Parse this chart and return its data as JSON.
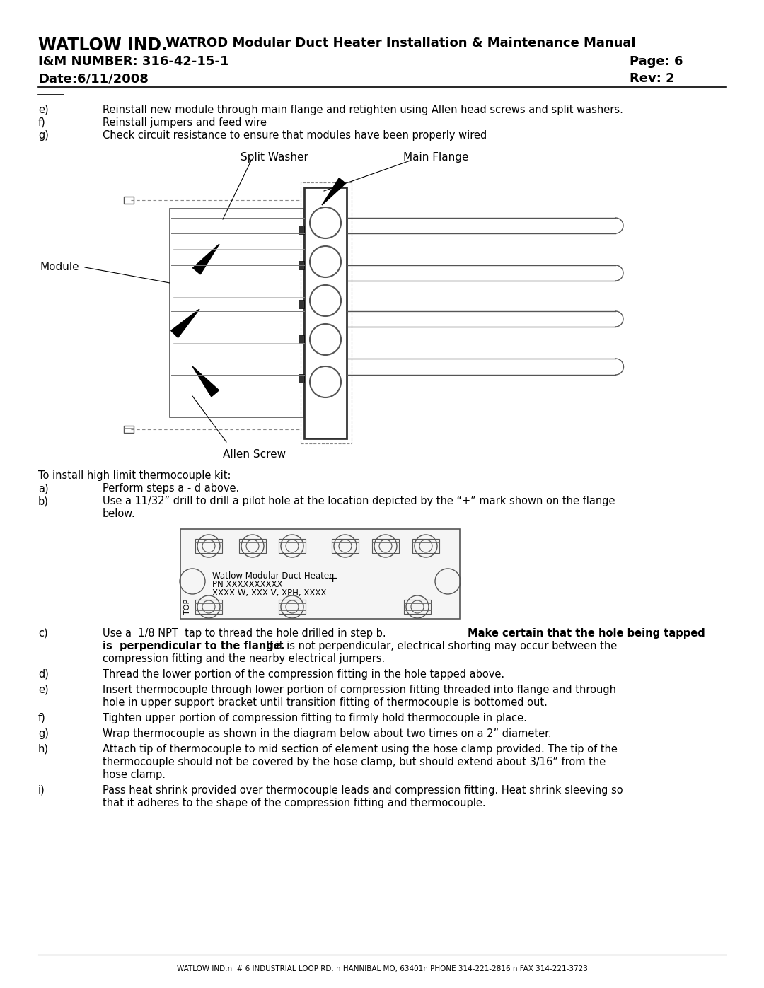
{
  "title_bold": "WATLOW IND.",
  "title_normal": " WATROD Modular Duct Heater Installation & Maintenance Manual",
  "im_number": "I&M NUMBER: 316-42-15-1",
  "page": "Page: 6",
  "date": "Date:6/11/2008",
  "rev": "Rev: 2",
  "bg_color": "#ffffff",
  "text_color": "#000000",
  "label_split_washer": "Split Washer",
  "label_main_flange": "Main Flange",
  "label_module": "Module",
  "label_allen_screw": "Allen Screw",
  "flange_diagram_text1": "Watlow Modular Duct Heater",
  "flange_diagram_text2": "PN XXXXXXXXXX",
  "flange_diagram_text3": "XXXX W, XXX V, XPH, XXXX",
  "flange_diagram_top": "TOP",
  "footer": "WATLOW IND.n  # 6 INDUSTRIAL LOOP RD. n HANNIBAL MO, 63401n PHONE 314-221-2816 n FAX 314-221-3723"
}
